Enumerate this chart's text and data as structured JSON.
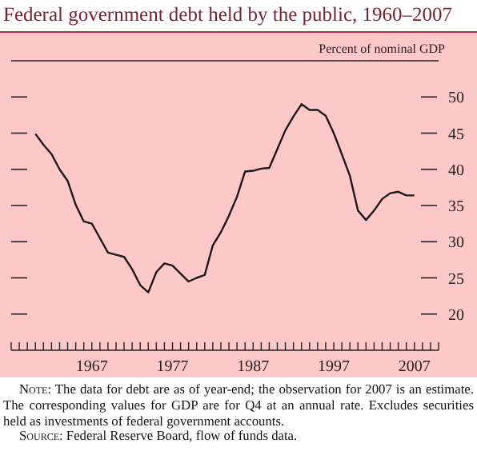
{
  "chart_data": {
    "type": "line",
    "title": "Federal government debt held by the public, 1960–2007",
    "ylabel": "Percent of nominal GDP",
    "x": [
      1960,
      1961,
      1962,
      1963,
      1964,
      1965,
      1966,
      1967,
      1968,
      1969,
      1970,
      1971,
      1972,
      1973,
      1974,
      1975,
      1976,
      1977,
      1978,
      1979,
      1980,
      1981,
      1982,
      1983,
      1984,
      1985,
      1986,
      1987,
      1988,
      1989,
      1990,
      1991,
      1992,
      1993,
      1994,
      1995,
      1996,
      1997,
      1998,
      1999,
      2000,
      2001,
      2002,
      2003,
      2004,
      2005,
      2006,
      2007
    ],
    "series": [
      {
        "color": "#1a1a1a",
        "values": [
          44.9,
          43.4,
          42.1,
          40,
          38.4,
          35.1,
          32.8,
          32.5,
          30.5,
          28.5,
          28.2,
          27.9,
          26.2,
          24,
          23,
          25.8,
          27,
          26.7,
          25.6,
          24.5,
          25,
          25.4,
          29.5,
          31.3,
          33.6,
          36.2,
          39.7,
          39.8,
          40.1,
          40.2,
          42.8,
          45.4,
          47.3,
          49,
          48.2,
          48.2,
          47.4,
          45,
          42.1,
          39.1,
          34.3,
          33,
          34.3,
          35.9,
          36.7,
          36.9,
          36.4,
          36.4
        ]
      }
    ],
    "xlim": [
      1957,
      2010
    ],
    "xticks": [
      {
        "value": 1957,
        "label": null
      },
      {
        "value": 1958,
        "label": null
      },
      {
        "value": 1959,
        "label": null
      },
      {
        "value": 1960,
        "label": null
      },
      {
        "value": 1961,
        "label": null
      },
      {
        "value": 1962,
        "label": null
      },
      {
        "value": 1963,
        "label": null
      },
      {
        "value": 1964,
        "label": null
      },
      {
        "value": 1965,
        "label": null
      },
      {
        "value": 1966,
        "label": null
      },
      1967,
      {
        "value": 1968,
        "label": null
      },
      {
        "value": 1969,
        "label": null
      },
      {
        "value": 1970,
        "label": null
      },
      {
        "value": 1971,
        "label": null
      },
      {
        "value": 1972,
        "label": null
      },
      {
        "value": 1973,
        "label": null
      },
      {
        "value": 1974,
        "label": null
      },
      {
        "value": 1975,
        "label": null
      },
      {
        "value": 1976,
        "label": null
      },
      1977,
      {
        "value": 1978,
        "label": null
      },
      {
        "value": 1979,
        "label": null
      },
      {
        "value": 1980,
        "label": null
      },
      {
        "value": 1981,
        "label": null
      },
      {
        "value": 1982,
        "label": null
      },
      {
        "value": 1983,
        "label": null
      },
      {
        "value": 1984,
        "label": null
      },
      {
        "value": 1985,
        "label": null
      },
      {
        "value": 1986,
        "label": null
      },
      1987,
      {
        "value": 1988,
        "label": null
      },
      {
        "value": 1989,
        "label": null
      },
      {
        "value": 1990,
        "label": null
      },
      {
        "value": 1991,
        "label": null
      },
      {
        "value": 1992,
        "label": null
      },
      {
        "value": 1993,
        "label": null
      },
      {
        "value": 1994,
        "label": null
      },
      {
        "value": 1995,
        "label": null
      },
      {
        "value": 1996,
        "label": null
      },
      1997,
      {
        "value": 1998,
        "label": null
      },
      {
        "value": 1999,
        "label": null
      },
      {
        "value": 2000,
        "label": null
      },
      {
        "value": 2001,
        "label": null
      },
      {
        "value": 2002,
        "label": null
      },
      {
        "value": 2003,
        "label": null
      },
      {
        "value": 2004,
        "label": null
      },
      {
        "value": 2005,
        "label": null
      },
      {
        "value": 2006,
        "label": null
      },
      2007,
      {
        "value": 2008,
        "label": null
      },
      {
        "value": 2009,
        "label": null
      },
      {
        "value": 2010,
        "label": null
      }
    ],
    "ylim": [
      15,
      55
    ],
    "yticks": [
      20,
      25,
      30,
      35,
      40,
      45,
      50
    ],
    "grid": false,
    "marker": "none",
    "line_style": "solid",
    "annotations": [
      "Note: The data for debt are as of year-end; the observation for 2007 is an estimate. The corresponding values for GDP are for Q4 at an annual rate. Excludes securities held as investments of federal government accounts.",
      "Source: Federal Reserve Board, flow of funds data."
    ]
  }
}
